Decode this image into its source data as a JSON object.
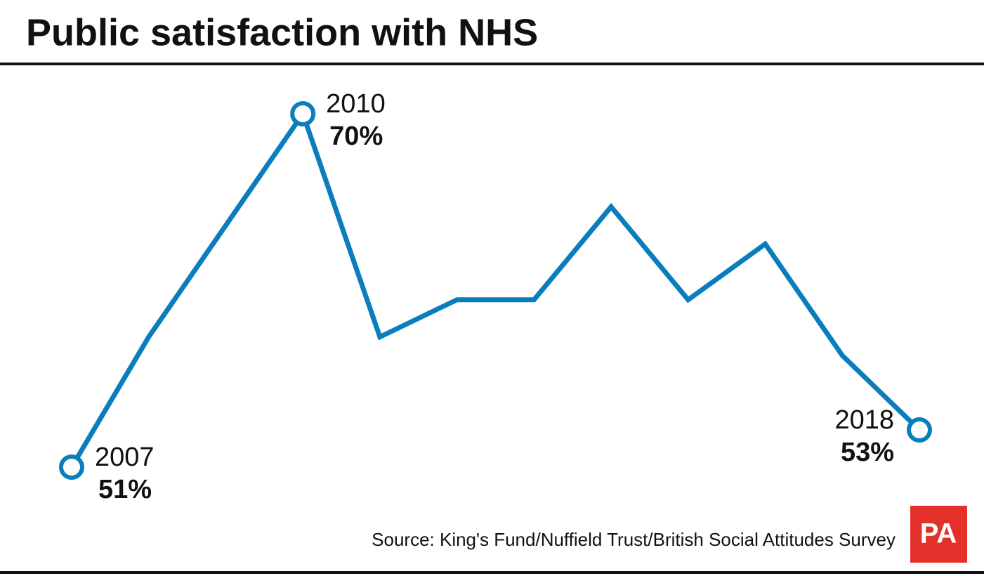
{
  "chart_data": {
    "type": "line",
    "title": "Public satisfaction with NHS",
    "categories": [
      "2007",
      null,
      null,
      "2010",
      null,
      null,
      null,
      null,
      null,
      null,
      null,
      "2018"
    ],
    "series": [
      {
        "color": "#0a7dbd",
        "values": [
          51,
          58,
          64,
          70,
          58,
          60,
          60,
          65,
          60,
          63,
          57,
          53
        ],
        "value_labels": [
          "51%",
          null,
          null,
          "70%",
          null,
          null,
          null,
          null,
          null,
          null,
          null,
          "53%"
        ]
      }
    ],
    "source": "Source: King's Fund/Nuffield Trust/British Social Attitudes Survey",
    "logo": "PA"
  }
}
